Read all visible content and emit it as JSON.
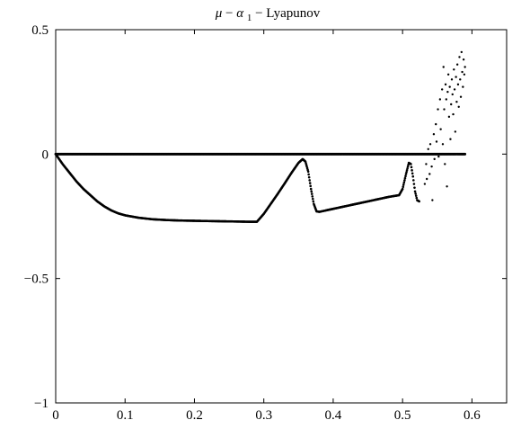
{
  "chart_data": {
    "type": "scatter",
    "title": "μ − α1 − Lyapunov",
    "title_parts": {
      "mu": "μ",
      "sep1": " − ",
      "alpha": "α",
      "alpha_sub": "1",
      "sep2": " − ",
      "name": "Lyapunov"
    },
    "xlabel": "",
    "ylabel": "",
    "xlim": [
      0,
      0.65
    ],
    "ylim": [
      -1,
      0.5
    ],
    "x_ticks": [
      0,
      0.1,
      0.2,
      0.3,
      0.4,
      0.5,
      0.6
    ],
    "x_tick_labels": [
      "0",
      "0.1",
      "0.2",
      "0.3",
      "0.4",
      "0.5",
      "0.6"
    ],
    "y_ticks": [
      -1,
      -0.5,
      0,
      0.5
    ],
    "y_tick_labels": [
      "−1",
      "−0.5",
      "0",
      "0.5"
    ],
    "grid": false,
    "marker_color": "#000000",
    "series": [
      {
        "values": [
          [
            0.0,
            0.0
          ],
          [
            0.01,
            0.0
          ],
          [
            0.1,
            0.0
          ],
          [
            0.2,
            0.0
          ],
          [
            0.3,
            0.0
          ],
          [
            0.4,
            0.0
          ],
          [
            0.5,
            0.0
          ],
          [
            0.56,
            0.0
          ],
          [
            0.59,
            0.0
          ]
        ]
      },
      {
        "values": [
          [
            0.0,
            0.0
          ],
          [
            0.01,
            -0.04
          ],
          [
            0.02,
            -0.075
          ],
          [
            0.03,
            -0.11
          ],
          [
            0.04,
            -0.14
          ],
          [
            0.05,
            -0.165
          ],
          [
            0.06,
            -0.19
          ],
          [
            0.07,
            -0.21
          ],
          [
            0.08,
            -0.226
          ],
          [
            0.09,
            -0.238
          ],
          [
            0.1,
            -0.246
          ],
          [
            0.12,
            -0.256
          ],
          [
            0.14,
            -0.262
          ],
          [
            0.16,
            -0.265
          ],
          [
            0.18,
            -0.267
          ],
          [
            0.2,
            -0.268
          ],
          [
            0.22,
            -0.269
          ],
          [
            0.24,
            -0.27
          ],
          [
            0.26,
            -0.271
          ],
          [
            0.28,
            -0.272
          ],
          [
            0.29,
            -0.272
          ],
          [
            0.3,
            -0.24
          ],
          [
            0.31,
            -0.2
          ],
          [
            0.32,
            -0.16
          ],
          [
            0.33,
            -0.118
          ],
          [
            0.34,
            -0.075
          ],
          [
            0.35,
            -0.035
          ],
          [
            0.356,
            -0.02
          ],
          [
            0.36,
            -0.03
          ],
          [
            0.364,
            -0.07
          ],
          [
            0.368,
            -0.14
          ],
          [
            0.372,
            -0.2
          ],
          [
            0.376,
            -0.23
          ],
          [
            0.38,
            -0.232
          ],
          [
            0.4,
            -0.22
          ],
          [
            0.42,
            -0.208
          ],
          [
            0.44,
            -0.196
          ],
          [
            0.46,
            -0.184
          ],
          [
            0.48,
            -0.172
          ],
          [
            0.495,
            -0.165
          ],
          [
            0.5,
            -0.14
          ],
          [
            0.505,
            -0.08
          ],
          [
            0.509,
            -0.035
          ],
          [
            0.512,
            -0.04
          ],
          [
            0.515,
            -0.09
          ],
          [
            0.518,
            -0.15
          ],
          [
            0.521,
            -0.185
          ],
          [
            0.524,
            -0.19
          ]
        ]
      },
      {
        "values": [
          [
            0.532,
            -0.12
          ],
          [
            0.534,
            -0.04
          ],
          [
            0.535,
            -0.1
          ],
          [
            0.537,
            0.02
          ],
          [
            0.539,
            -0.08
          ],
          [
            0.54,
            0.04
          ],
          [
            0.542,
            -0.05
          ],
          [
            0.543,
            -0.185
          ],
          [
            0.545,
            0.08
          ],
          [
            0.546,
            -0.02
          ],
          [
            0.548,
            0.12
          ],
          [
            0.549,
            0.05
          ],
          [
            0.551,
            0.18
          ],
          [
            0.552,
            -0.01
          ],
          [
            0.554,
            0.22
          ],
          [
            0.555,
            0.1
          ],
          [
            0.557,
            0.26
          ],
          [
            0.558,
            0.04
          ],
          [
            0.559,
            0.35
          ],
          [
            0.56,
            0.18
          ],
          [
            0.561,
            -0.04
          ],
          [
            0.562,
            0.28
          ],
          [
            0.563,
            0.22
          ],
          [
            0.564,
            -0.13
          ],
          [
            0.565,
            0.25
          ],
          [
            0.566,
            0.32
          ],
          [
            0.567,
            0.15
          ],
          [
            0.568,
            0.27
          ],
          [
            0.569,
            0.06
          ],
          [
            0.57,
            0.2
          ],
          [
            0.571,
            0.3
          ],
          [
            0.572,
            0.24
          ],
          [
            0.573,
            0.16
          ],
          [
            0.574,
            0.34
          ],
          [
            0.575,
            0.26
          ],
          [
            0.576,
            0.09
          ],
          [
            0.577,
            0.31
          ],
          [
            0.578,
            0.21
          ],
          [
            0.579,
            0.36
          ],
          [
            0.58,
            0.28
          ],
          [
            0.581,
            0.19
          ],
          [
            0.582,
            0.39
          ],
          [
            0.583,
            0.3
          ],
          [
            0.584,
            0.23
          ],
          [
            0.585,
            0.41
          ],
          [
            0.586,
            0.33
          ],
          [
            0.587,
            0.27
          ],
          [
            0.588,
            0.38
          ],
          [
            0.589,
            0.32
          ],
          [
            0.59,
            0.35
          ]
        ]
      }
    ]
  }
}
